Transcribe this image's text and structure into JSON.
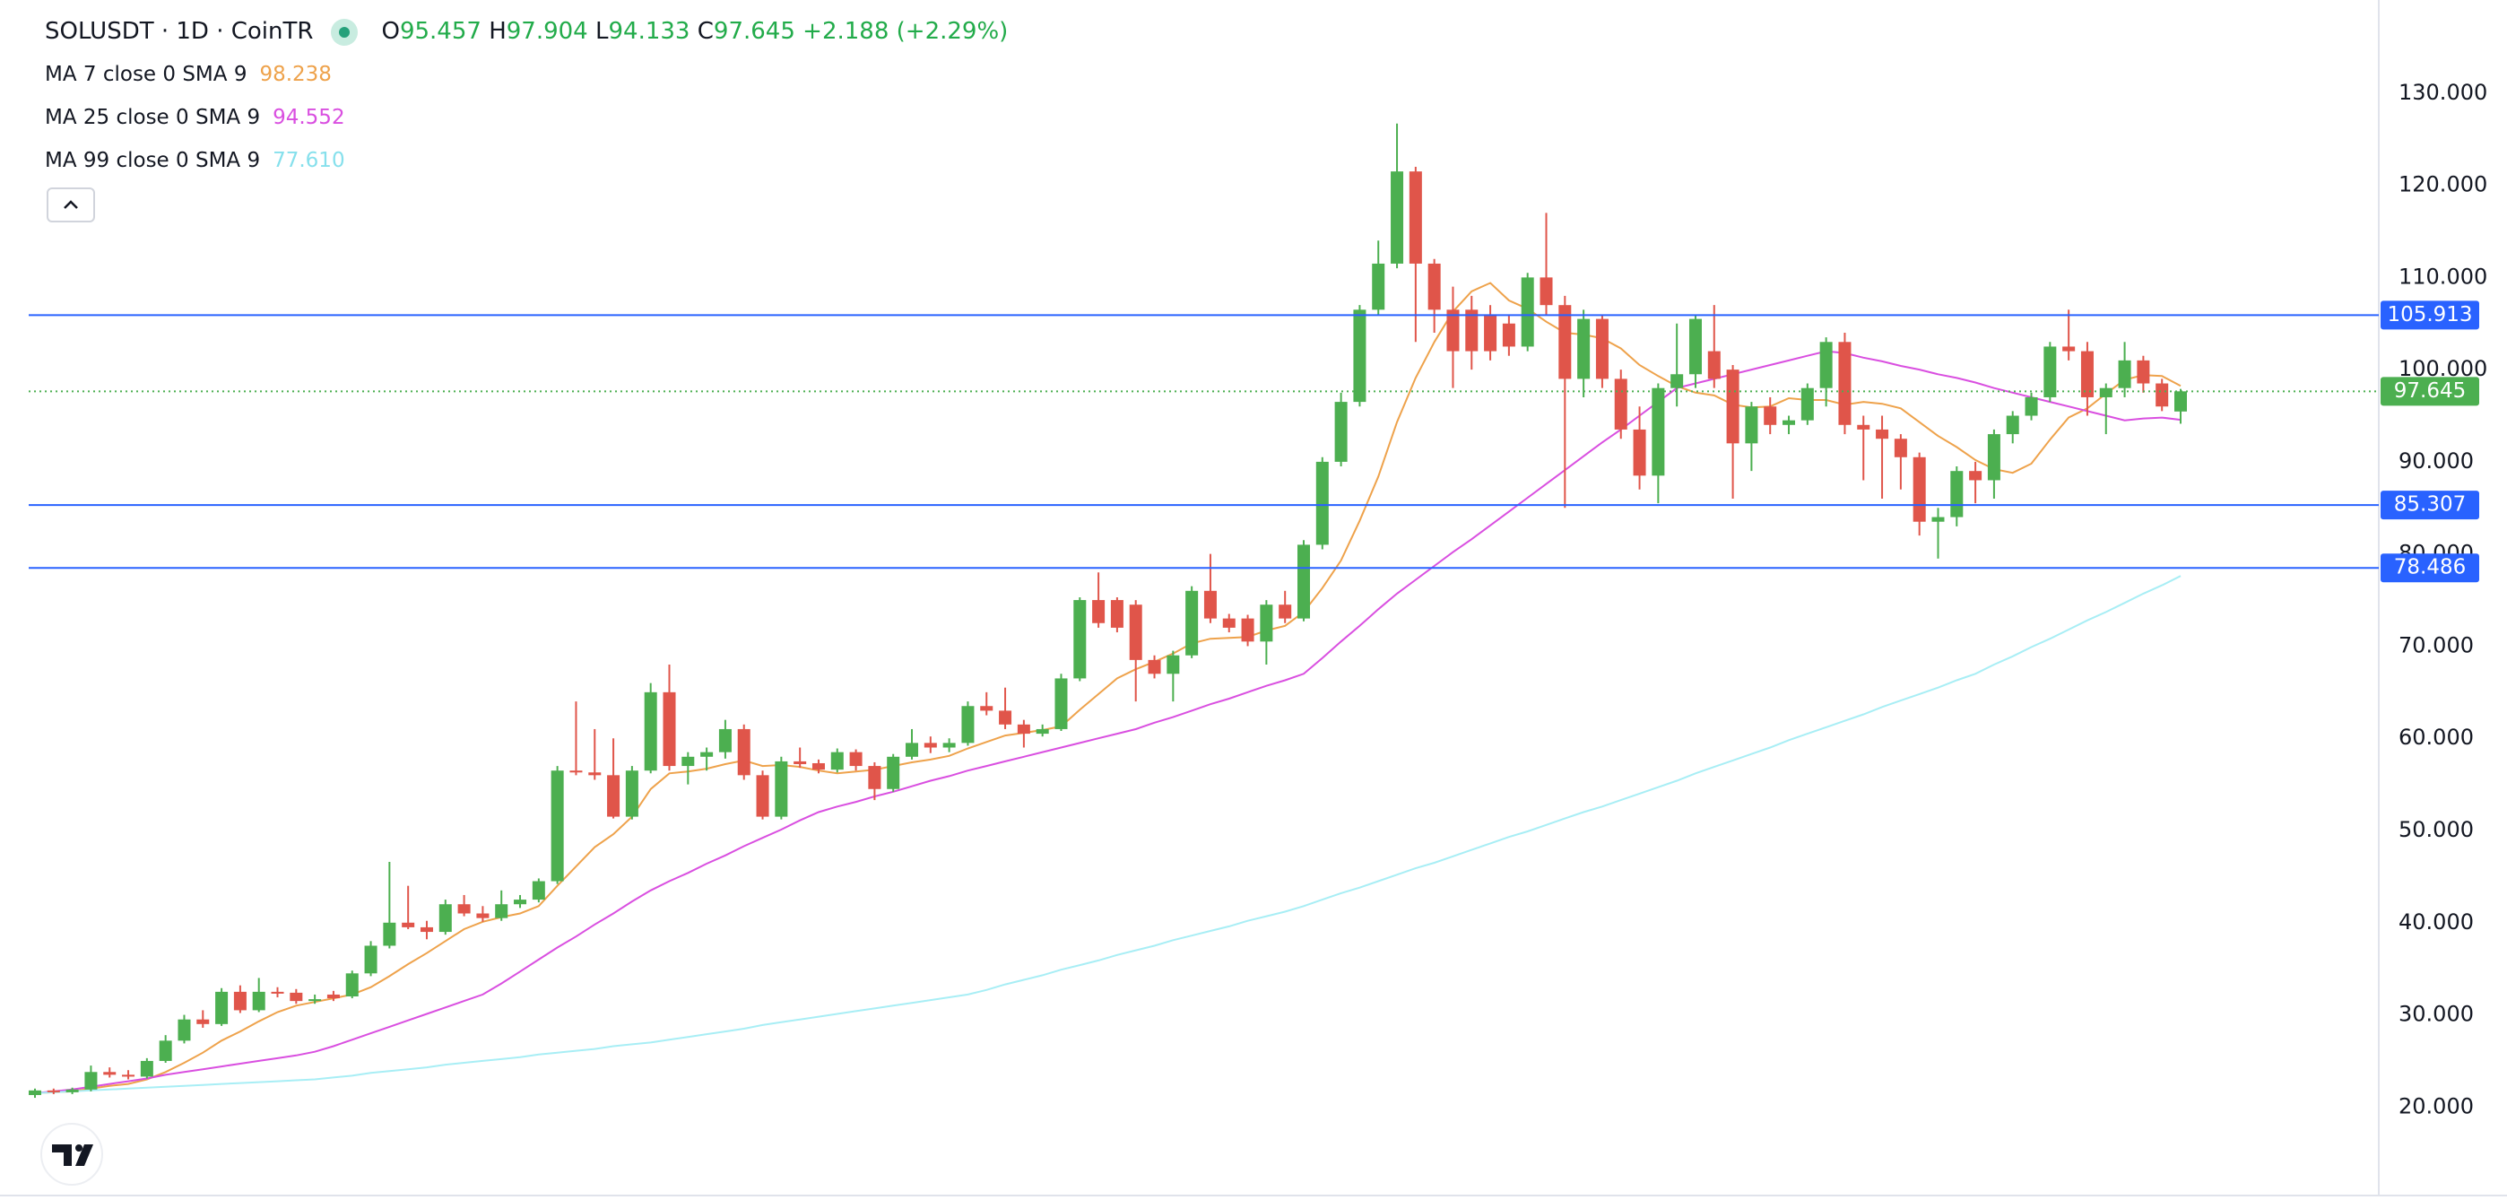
{
  "header": {
    "symbol": "SOLUSDT · 1D · CoinTR",
    "labels": [
      "O",
      "H",
      "L",
      "C"
    ],
    "change": "+2.188",
    "change_pct": "(+2.29%)"
  },
  "chart_data": {
    "type": "candlestick",
    "up_color": "#4caf50",
    "down_color": "#e0554a",
    "open": [
      21.3,
      21.8,
      21.6,
      21.9,
      23.8,
      23.5,
      23.3,
      25,
      27.2,
      29.5,
      29,
      32.5,
      30.5,
      32.5,
      32.4,
      31.5,
      32.2,
      32,
      34.5,
      37.5,
      40,
      39.5,
      39,
      42,
      41,
      40.5,
      42,
      42.5,
      44.5,
      56.5,
      56.3,
      56,
      51.5,
      56.5,
      65,
      57,
      58,
      58.5,
      61,
      56,
      51.5,
      57.5,
      57.3,
      56.6,
      58.5,
      57,
      54.5,
      58,
      59.5,
      59,
      59.5,
      63.5,
      63,
      61.5,
      60.5,
      61,
      66.5,
      75,
      75,
      74.5,
      68.5,
      67,
      69,
      76,
      73,
      73,
      70.5,
      74.5,
      73,
      81,
      90,
      96.5,
      106.5,
      111.5,
      121.5,
      111.5,
      106.5,
      106.5,
      106,
      105,
      102.5,
      110,
      107,
      99,
      105.5,
      99,
      93.5,
      88.5,
      98,
      99.5,
      102,
      100,
      92,
      96,
      94,
      94.5,
      98,
      103,
      94,
      93.5,
      92.5,
      90.5,
      83.5,
      84,
      89,
      88,
      93,
      95,
      97,
      102.5,
      102,
      97,
      98,
      101,
      98.5,
      95.457
    ],
    "high": [
      22,
      22,
      22.1,
      24.5,
      24.3,
      24,
      25.3,
      27.8,
      30,
      30.5,
      32.9,
      33.2,
      34,
      33,
      32.8,
      32.2,
      32.6,
      34.8,
      38,
      46.6,
      44,
      40.2,
      42.5,
      43,
      41.8,
      43.5,
      43,
      44.8,
      57,
      64,
      61,
      60,
      57,
      66,
      68,
      58.5,
      59,
      62,
      61.5,
      56.5,
      58,
      59,
      57.7,
      58.9,
      58.8,
      57.4,
      58.3,
      61,
      60.2,
      60,
      64,
      65,
      65.5,
      62,
      61.5,
      67,
      75.3,
      78,
      75.3,
      75,
      69,
      69.5,
      76.5,
      80,
      73.5,
      73.4,
      75,
      76,
      81.5,
      90.5,
      97.5,
      107,
      114,
      126.7,
      122,
      112,
      109,
      108,
      107,
      106,
      110.5,
      117,
      108,
      106.5,
      106,
      100,
      96,
      98.5,
      105,
      106,
      107,
      100.5,
      96.5,
      97,
      95,
      98.5,
      103.5,
      104,
      95,
      95,
      93,
      91,
      85,
      89.5,
      90,
      93.5,
      95.5,
      97.5,
      103,
      106.5,
      103,
      98.5,
      103,
      101.5,
      99,
      97.904
    ],
    "low": [
      21,
      21.4,
      21.4,
      21.7,
      23.2,
      23,
      23.1,
      24.8,
      26.9,
      28.6,
      28.8,
      30.2,
      30.3,
      31.9,
      31.2,
      31.2,
      31.5,
      31.8,
      34.2,
      37.2,
      39.3,
      38.2,
      38.7,
      40.7,
      40.1,
      40.2,
      41.6,
      42.2,
      44.2,
      56,
      55.5,
      51.3,
      51.2,
      56.2,
      56.5,
      55,
      56.5,
      57.8,
      55.5,
      51.2,
      51.2,
      56.8,
      56.2,
      56.3,
      56.5,
      53.3,
      54.2,
      57.7,
      58.4,
      58.5,
      59.2,
      62.5,
      61,
      59,
      60.2,
      60.8,
      66.2,
      72,
      71.5,
      64,
      66.5,
      64,
      68.7,
      72.5,
      71.5,
      70,
      68,
      72.5,
      72.7,
      80.5,
      89.5,
      96,
      106,
      111,
      103,
      104,
      98,
      100,
      101,
      101.5,
      102,
      106,
      85,
      97,
      98,
      92.5,
      87,
      85.5,
      96,
      98,
      98,
      86,
      89,
      93,
      93,
      94,
      96,
      93,
      88,
      86,
      87,
      82,
      79.5,
      83,
      85.5,
      86,
      92,
      94.5,
      96.5,
      101,
      95,
      93,
      97,
      97.5,
      95.5,
      94.133
    ],
    "close": [
      21.8,
      21.6,
      21.9,
      23.8,
      23.5,
      23.3,
      25,
      27.2,
      29.5,
      29,
      32.5,
      30.5,
      32.5,
      32.3,
      31.5,
      31.7,
      31.8,
      34.5,
      37.5,
      40,
      39.5,
      39,
      42,
      41,
      40.5,
      42,
      42.5,
      44.5,
      56.5,
      56.3,
      56,
      51.5,
      56.5,
      65,
      57,
      58,
      58.5,
      61,
      56,
      51.5,
      57.5,
      57.2,
      56.6,
      58.5,
      57,
      54.5,
      58,
      59.5,
      59,
      59.5,
      63.5,
      63,
      61.5,
      60.5,
      61,
      66.5,
      75,
      72.5,
      72,
      68.5,
      67,
      69,
      76,
      73,
      72,
      70.5,
      74.5,
      73,
      81,
      90,
      96.5,
      106.5,
      111.5,
      121.5,
      111.5,
      106.5,
      102,
      102,
      102,
      102.5,
      110,
      107,
      99,
      105.5,
      99,
      93.5,
      88.5,
      98,
      99.5,
      105.5,
      99,
      92,
      96,
      94,
      94.5,
      98,
      103,
      94,
      93.5,
      92.5,
      90.5,
      83.5,
      84,
      89,
      88,
      93,
      95,
      97,
      102.5,
      102,
      97,
      98,
      101,
      98.5,
      96,
      97.645
    ],
    "series": [
      {
        "name": "MA 7 close 0 SMA 9",
        "color": "#eea24b",
        "legend_value": "98.238",
        "values": [
          21.5,
          21.6,
          21.7,
          22,
          22.3,
          22.5,
          23,
          23.8,
          24.8,
          25.9,
          27.2,
          28.2,
          29.3,
          30.3,
          31,
          31.4,
          31.8,
          32.2,
          33,
          34.2,
          35.5,
          36.7,
          38,
          39.3,
          40.1,
          40.6,
          41,
          41.8,
          44,
          46.1,
          48.2,
          49.6,
          51.5,
          54.5,
          56.2,
          56.4,
          56.7,
          57.2,
          57.6,
          57,
          57.1,
          56.9,
          56.5,
          56.2,
          56.4,
          56.6,
          57,
          57.4,
          57.7,
          58.1,
          58.9,
          59.6,
          60.3,
          60.6,
          60.9,
          61.3,
          63.1,
          64.8,
          66.5,
          67.5,
          68.3,
          69.2,
          70.3,
          70.8,
          70.9,
          71,
          71.7,
          72.2,
          73.7,
          76.3,
          79.3,
          83.6,
          88.4,
          94.3,
          99.1,
          103,
          106.3,
          108.5,
          109.4,
          107.5,
          106.6,
          105.2,
          104,
          103.8,
          103.4,
          102.3,
          100.5,
          99.3,
          98.2,
          97.5,
          97.2,
          96.2,
          95.9,
          96,
          96.9,
          96.7,
          96.7,
          96.2,
          96.5,
          96.3,
          95.8,
          94.3,
          92.8,
          91.6,
          90.2,
          89.2,
          88.8,
          89.8,
          92.4,
          94.8,
          95.8,
          97.4,
          98.9,
          99.4,
          99.3,
          98.238
        ]
      },
      {
        "name": "MA 25 close 0 SMA 9",
        "color": "#d94fe0",
        "legend_value": "94.552",
        "values": [
          21.5,
          21.7,
          21.9,
          22.2,
          22.5,
          22.8,
          23.1,
          23.5,
          23.8,
          24.1,
          24.4,
          24.7,
          25,
          25.3,
          25.6,
          26,
          26.6,
          27.3,
          28,
          28.7,
          29.4,
          30.1,
          30.8,
          31.5,
          32.2,
          33.4,
          34.7,
          36,
          37.3,
          38.5,
          39.8,
          41,
          42.3,
          43.5,
          44.5,
          45.4,
          46.4,
          47.3,
          48.3,
          49.2,
          50.1,
          51.1,
          52,
          52.6,
          53.1,
          53.7,
          54.2,
          54.8,
          55.4,
          55.9,
          56.5,
          57,
          57.5,
          58,
          58.5,
          59,
          59.5,
          60,
          60.5,
          61,
          61.7,
          62.3,
          63,
          63.7,
          64.3,
          65,
          65.7,
          66.3,
          67,
          68.7,
          70.5,
          72.2,
          74,
          75.7,
          77.2,
          78.7,
          80.2,
          81.6,
          83.1,
          84.6,
          86.1,
          87.6,
          89.1,
          90.6,
          92.1,
          93.5,
          95,
          96.5,
          98,
          98.5,
          99,
          99.5,
          100,
          100.5,
          101,
          101.5,
          102,
          101.8,
          101.3,
          100.9,
          100.4,
          100,
          99.5,
          99.1,
          98.6,
          98,
          97.5,
          97,
          96.5,
          96,
          95.5,
          95,
          94.5,
          94.7,
          94.8,
          94.552
        ]
      },
      {
        "name": "MA 99 close 0 SMA 9",
        "color": "#a8eef5",
        "legend_value": "77.610",
        "legend_color": "#86e0ec",
        "values": [
          21.5,
          21.6,
          21.7,
          21.8,
          21.9,
          22,
          22.1,
          22.2,
          22.3,
          22.4,
          22.5,
          22.6,
          22.7,
          22.8,
          22.9,
          23,
          23.2,
          23.4,
          23.7,
          23.9,
          24.1,
          24.3,
          24.6,
          24.8,
          25,
          25.2,
          25.4,
          25.7,
          25.9,
          26.1,
          26.3,
          26.6,
          26.8,
          27,
          27.3,
          27.6,
          27.9,
          28.2,
          28.5,
          28.9,
          29.2,
          29.5,
          29.8,
          30.1,
          30.4,
          30.7,
          31,
          31.3,
          31.6,
          31.9,
          32.2,
          32.7,
          33.3,
          33.8,
          34.3,
          34.9,
          35.4,
          35.9,
          36.5,
          37,
          37.5,
          38.1,
          38.6,
          39.1,
          39.6,
          40.2,
          40.7,
          41.2,
          41.8,
          42.5,
          43.2,
          43.8,
          44.5,
          45.2,
          45.9,
          46.5,
          47.2,
          47.9,
          48.6,
          49.3,
          49.9,
          50.6,
          51.3,
          52,
          52.6,
          53.3,
          54,
          54.7,
          55.4,
          56.2,
          56.9,
          57.6,
          58.3,
          59,
          59.8,
          60.5,
          61.2,
          61.9,
          62.6,
          63.4,
          64.1,
          64.8,
          65.5,
          66.3,
          67,
          68,
          68.9,
          69.9,
          70.8,
          71.8,
          72.8,
          73.7,
          74.7,
          75.7,
          76.6,
          77.61
        ]
      }
    ],
    "levels": [
      105.913,
      85.307,
      78.486
    ],
    "level_color": "#2962ff",
    "last_price_color": "#4caf50",
    "ylim": [
      10.4,
      140.1
    ],
    "yticks": [
      {
        "value": 20,
        "label": "20.000"
      },
      {
        "value": 30,
        "label": "30.000"
      },
      {
        "value": 40,
        "label": "40.000"
      },
      {
        "value": 50,
        "label": "50.000"
      },
      {
        "value": 60,
        "label": "60.000"
      },
      {
        "value": 70,
        "label": "70.000"
      },
      {
        "value": 80,
        "label": "80.000"
      },
      {
        "value": 90,
        "label": "90.000"
      },
      {
        "value": 100,
        "label": "100.000"
      },
      {
        "value": 110,
        "label": "110.000"
      },
      {
        "value": 120,
        "label": "120.000"
      },
      {
        "value": 130,
        "label": "130.000"
      }
    ],
    "grid": false
  }
}
